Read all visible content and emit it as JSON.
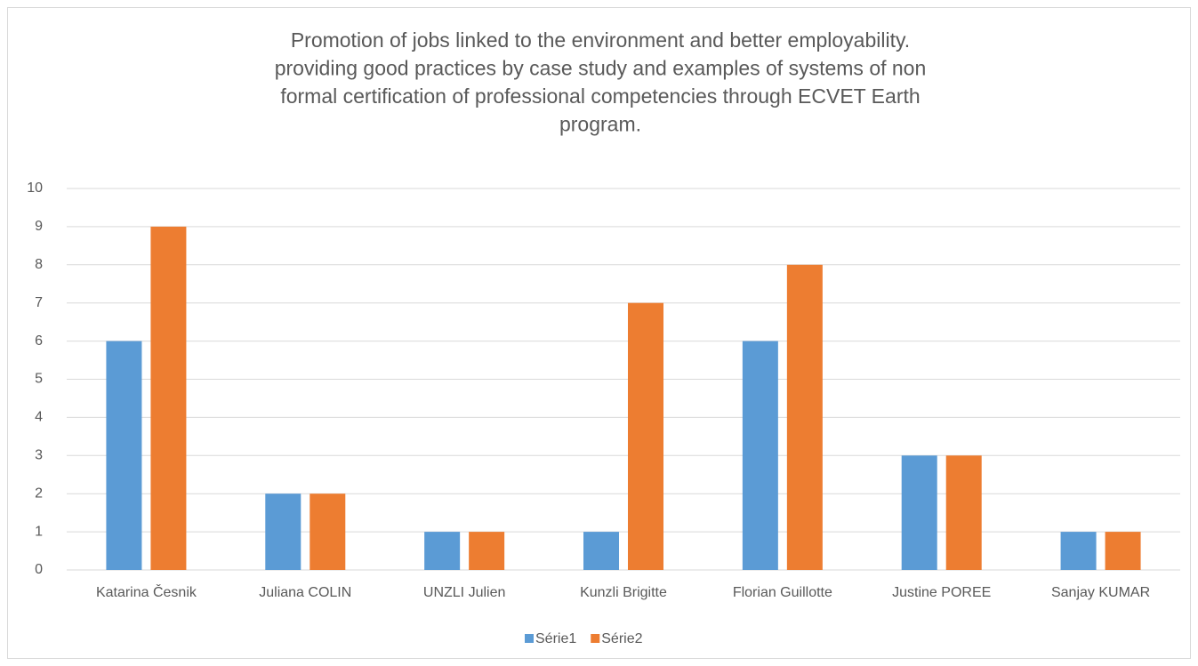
{
  "chart_data": {
    "type": "bar",
    "title": [
      "Promotion of jobs linked to the environment and better employability.",
      "providing good practices by case study and examples of systems of non",
      "formal certification of professional competencies through ECVET Earth",
      "program."
    ],
    "categories": [
      "Katarina Česnik",
      "Juliana COLIN",
      "UNZLI Julien",
      "Kunzli Brigitte",
      "Florian Guillotte",
      "Justine POREE",
      "Sanjay KUMAR"
    ],
    "series": [
      {
        "name": "Série1",
        "color": "#5b9bd5",
        "values": [
          6,
          2,
          1,
          1,
          6,
          3,
          1
        ]
      },
      {
        "name": "Série2",
        "color": "#ed7d31",
        "values": [
          9,
          2,
          1,
          7,
          8,
          3,
          1
        ]
      }
    ],
    "ylim": [
      0,
      10
    ],
    "yticks": [
      0,
      1,
      2,
      3,
      4,
      5,
      6,
      7,
      8,
      9,
      10
    ],
    "grid": true,
    "legend": "bottom"
  }
}
